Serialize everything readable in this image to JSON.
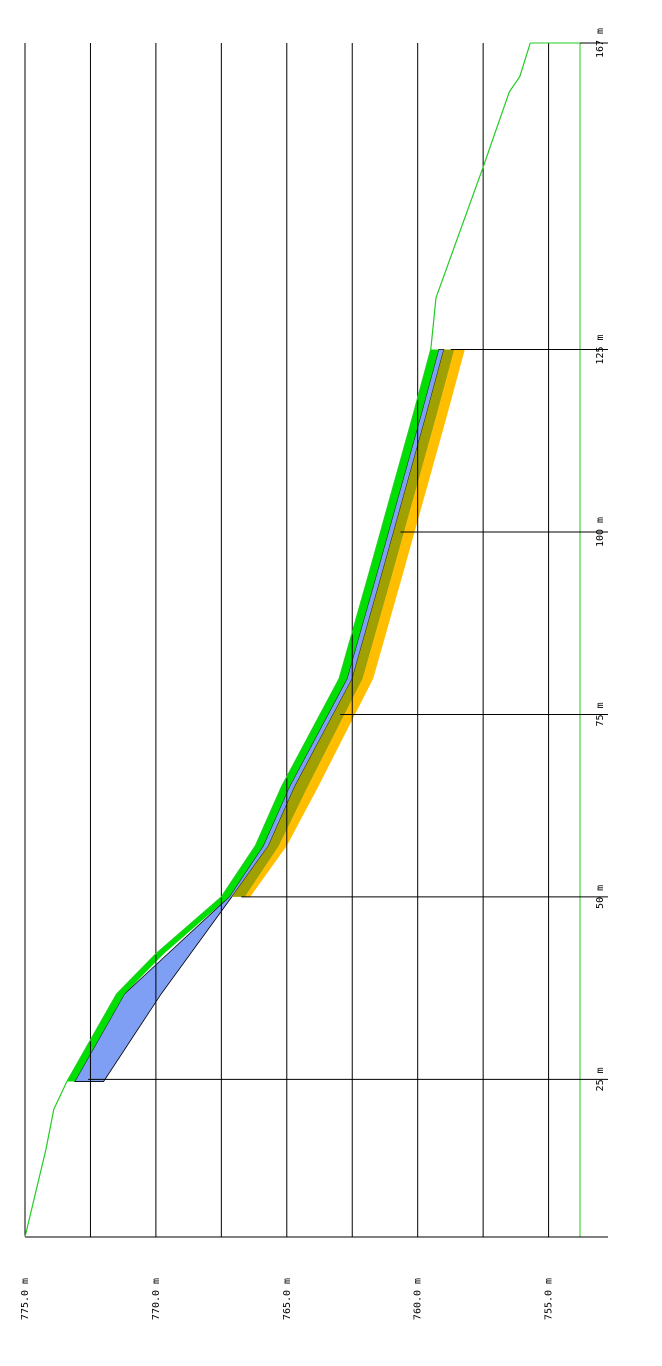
{
  "chart_data": {
    "type": "profile",
    "xlim": [
      3.4,
      167
    ],
    "xticks": [
      {
        "value": 25,
        "label": "25 m"
      },
      {
        "value": 50,
        "label": "50 m"
      },
      {
        "value": 75,
        "label": "75 m"
      },
      {
        "value": 100,
        "label": "100 m"
      },
      {
        "value": 125,
        "label": "125 m"
      },
      {
        "value": 167,
        "label": "167 m"
      }
    ],
    "ylim": [
      753.8,
      775
    ],
    "yticks": [
      {
        "value": 775,
        "label": "775.0 m"
      },
      {
        "value": 770,
        "label": "770.0 m"
      },
      {
        "value": 765,
        "label": "765.0 m"
      },
      {
        "value": 760,
        "label": "760.0 m"
      },
      {
        "value": 755,
        "label": "755.0 m"
      }
    ],
    "yminor": [
      772.5,
      767.5,
      762.5,
      757.5
    ],
    "grid": true,
    "surface": {
      "color": "#22cc22",
      "x": [
        3.4,
        15.4,
        20.9,
        24.7,
        36.7,
        42.2,
        50,
        57,
        65.1,
        79.9,
        95.1,
        115.7,
        125,
        132.1,
        150,
        160.3,
        162.4,
        167
      ],
      "values": [
        775,
        774.2,
        773.9,
        773.4,
        771.5,
        770,
        767.5,
        766.2,
        765.2,
        763,
        761.8,
        760.2,
        759.5,
        759.3,
        757.5,
        756.5,
        756.1,
        755.7
      ]
    },
    "layers": [
      {
        "color": "#7f9ff5",
        "x": [
          24.7,
          36.7,
          50,
          57,
          65.1,
          79.9,
          95.1,
          115.7,
          125
        ],
        "top": [
          773.1,
          771.2,
          767.2,
          765.9,
          764.9,
          762.7,
          761.5,
          759.9,
          759.2
        ],
        "bottom": [
          772.0,
          769.8,
          767.1,
          765.7,
          764.7,
          762.5,
          761.3,
          759.7,
          759.0
        ]
      },
      {
        "color": "#00e000",
        "x": [
          24.7,
          36.7,
          42.2,
          50,
          57,
          65.1,
          79.9,
          95.1,
          115.7,
          125
        ],
        "top": [
          773.4,
          771.5,
          770,
          767.5,
          766.2,
          765.2,
          763,
          761.8,
          760.2,
          759.5
        ],
        "bottom": [
          773.1,
          771.2,
          769.7,
          767.2,
          765.9,
          764.9,
          762.7,
          761.5,
          759.9,
          759.2
        ]
      },
      {
        "color": "#a0a000",
        "x": [
          50,
          57,
          65.1,
          79.9,
          95.1,
          115.7,
          125
        ],
        "top": [
          767.1,
          765.7,
          764.7,
          762.5,
          761.3,
          759.7,
          759.0
        ],
        "bottom": [
          766.6,
          765.3,
          764.2,
          762.1,
          760.9,
          759.3,
          758.6
        ]
      },
      {
        "color": "#ffbf00",
        "x": [
          50,
          57,
          65.1,
          79.9,
          95.1,
          115.7,
          125
        ],
        "top": [
          766.6,
          765.3,
          764.2,
          762.1,
          760.9,
          759.3,
          758.6
        ],
        "bottom": [
          766.4,
          765.0,
          763.8,
          761.7,
          760.5,
          758.9,
          758.2
        ]
      }
    ]
  }
}
